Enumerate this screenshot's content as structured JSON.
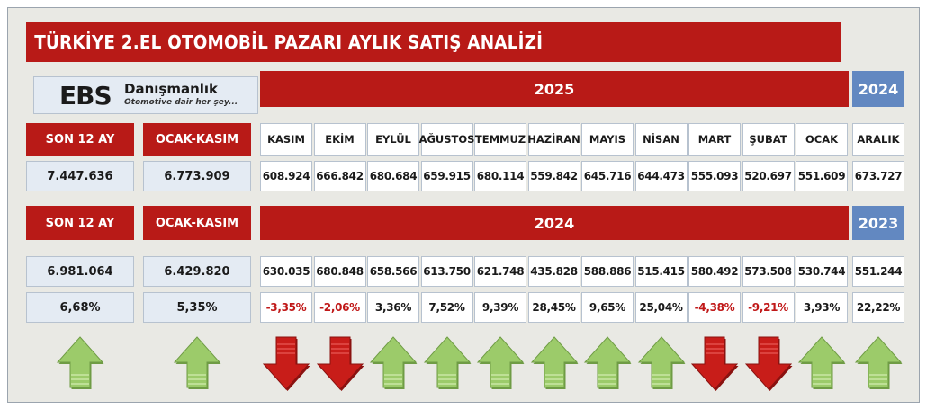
{
  "title": "TÜRKİYE 2.EL OTOMOBİL PAZARI AYLIK SATIŞ ANALİZİ",
  "logo": {
    "brand": "EBS",
    "name": "Danışmanlık",
    "tagline": "Otomotive dair her şey..."
  },
  "colors": {
    "red": "#b81a17",
    "blue": "#6288c1",
    "light": "#e4ebf3",
    "up_arrow": "#9ccb6a",
    "down_arrow": "#c81d19",
    "negative_text": "#c01818"
  },
  "section_2025": {
    "year_band": "2025",
    "prev_year_band": "2024",
    "label_last12": "SON 12 AY",
    "label_ytd": "OCAK-KASIM",
    "months": [
      "KASIM",
      "EKİM",
      "EYLÜL",
      "AĞUSTOS",
      "TEMMUZ",
      "HAZİRAN",
      "MAYIS",
      "NİSAN",
      "MART",
      "ŞUBAT",
      "OCAK"
    ],
    "prev_month": "ARALIK",
    "last12_total": "7.447.636",
    "ytd_total": "6.773.909",
    "values": [
      "608.924",
      "666.842",
      "680.684",
      "659.915",
      "680.114",
      "559.842",
      "645.716",
      "644.473",
      "555.093",
      "520.697",
      "551.609"
    ],
    "prev_value": "673.727"
  },
  "section_2024": {
    "year_band": "2024",
    "prev_year_band": "2023",
    "label_last12": "SON 12 AY",
    "label_ytd": "OCAK-KASIM",
    "last12_total": "6.981.064",
    "ytd_total": "6.429.820",
    "values": [
      "630.035",
      "680.848",
      "658.566",
      "613.750",
      "621.748",
      "435.828",
      "588.886",
      "515.415",
      "580.492",
      "573.508",
      "530.744"
    ],
    "prev_value": "551.244"
  },
  "change": {
    "last12_pct": "6,68%",
    "ytd_pct": "5,35%",
    "values": [
      "-3,35%",
      "-2,06%",
      "3,36%",
      "7,52%",
      "9,39%",
      "28,45%",
      "9,65%",
      "25,04%",
      "-4,38%",
      "-9,21%",
      "3,93%"
    ],
    "prev_pct": "22,22%"
  },
  "chart_data": {
    "type": "table",
    "title": "TÜRKİYE 2.EL OTOMOBİL PAZARI AYLIK SATIŞ ANALİZİ",
    "columns": [
      "SON 12 AY",
      "OCAK-KASIM",
      "KASIM",
      "EKİM",
      "EYLÜL",
      "AĞUSTOS",
      "TEMMUZ",
      "HAZİRAN",
      "MAYIS",
      "NİSAN",
      "MART",
      "ŞUBAT",
      "OCAK",
      "ARALIK"
    ],
    "rows": [
      {
        "period": "2025 (ARALIK: 2024)",
        "values": [
          7447636,
          6773909,
          608924,
          666842,
          680684,
          659915,
          680114,
          559842,
          645716,
          644473,
          555093,
          520697,
          551609,
          673727
        ]
      },
      {
        "period": "2024 (ARALIK: 2023)",
        "values": [
          6981064,
          6429820,
          630035,
          680848,
          658566,
          613750,
          621748,
          435828,
          588886,
          515415,
          580492,
          573508,
          530744,
          551244
        ]
      },
      {
        "period": "change %",
        "values": [
          6.68,
          5.35,
          -3.35,
          -2.06,
          3.36,
          7.52,
          9.39,
          28.45,
          9.65,
          25.04,
          -4.38,
          -9.21,
          3.93,
          22.22
        ]
      }
    ],
    "arrows": [
      "up",
      "up",
      "down",
      "down",
      "up",
      "up",
      "up",
      "up",
      "up",
      "up",
      "down",
      "down",
      "up",
      "up"
    ]
  }
}
